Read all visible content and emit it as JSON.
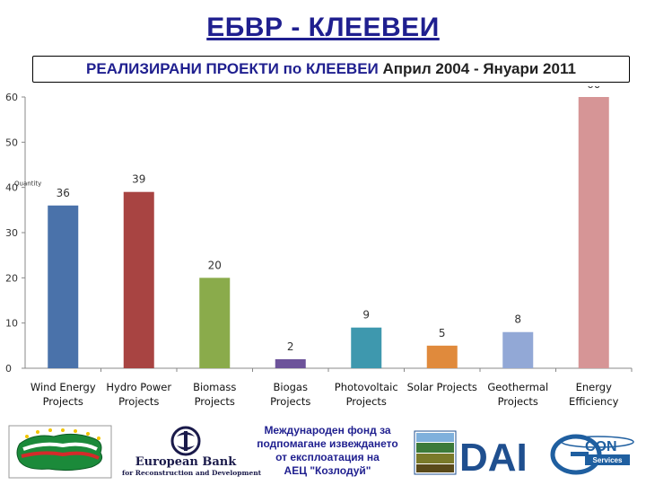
{
  "header": {
    "title": "ЕБВР - КЛЕЕВЕИ",
    "subtitle_part1": "РЕАЛИЗИРАНИ ПРОЕКТИ по КЛЕЕВЕИ ",
    "subtitle_part2": "Април 2004 - Януари 2011"
  },
  "chart_data": {
    "type": "bar",
    "title": "",
    "xlabel": "",
    "ylabel": "Quantity",
    "ylim": [
      0,
      60
    ],
    "yticks": [
      0,
      10,
      20,
      30,
      40,
      50,
      60
    ],
    "grid": false,
    "legend": "none",
    "categories": [
      [
        "Wind Energy",
        "Projects"
      ],
      [
        "Hydro Power",
        "Projects"
      ],
      [
        "Biomass",
        "Projects"
      ],
      [
        "Biogas",
        "Projects"
      ],
      [
        "Photovoltaic",
        "Projects"
      ],
      [
        "Solar Projects"
      ],
      [
        "Geothermal",
        "Projects"
      ],
      [
        "Energy",
        "Efficiency"
      ]
    ],
    "values": [
      36,
      39,
      20,
      2,
      9,
      5,
      8,
      60
    ],
    "colors": [
      "#4a72aa",
      "#a84442",
      "#8aab4b",
      "#6d539a",
      "#3e98ae",
      "#e08a3c",
      "#92a8d6",
      "#d69596"
    ]
  },
  "logos": {
    "ebrd_name": "European Bank",
    "ebrd_sub": "for Reconstruction and Development",
    "kidsf_lines": [
      "Международен фонд за",
      "подпомагане извеждането",
      "от експлоатация на",
      "АЕЦ \"Козлодуй\""
    ],
    "dai_text": "DAI",
    "encon_text": "CON",
    "encon_sub": "Services"
  }
}
